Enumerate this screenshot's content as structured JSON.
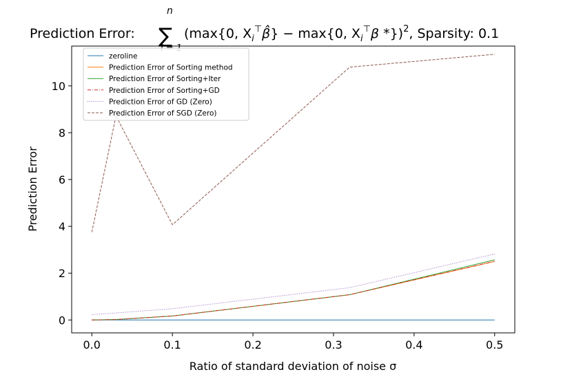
{
  "chart_data": {
    "type": "line",
    "title": "Prediction Error: ∑ᵢ₌₁ⁿ (max{0, Xᵢᵀβ̂} − max{0, Xᵢᵀβ*})², Sparsity: 0.1",
    "title_parts": {
      "prefix": "Prediction Error:",
      "sum_symbol": "∑",
      "sum_upper": "n",
      "sum_lower": "i = 1",
      "expression": "(max{0, X",
      "sub_i": "i",
      "sup_T": "⊤",
      "beta_hat": "β̂",
      "minus_part": "} − max{0, X",
      "beta_star": "β *",
      "tail": "})",
      "square": "2",
      "suffix": ", Sparsity: 0.1"
    },
    "xlabel": "Ratio of standard deviation of noise σ",
    "ylabel": "Prediction Error",
    "xlim": [
      -0.025,
      0.525
    ],
    "ylim": [
      -0.55,
      11.7
    ],
    "xticks": [
      0.0,
      0.1,
      0.2,
      0.3,
      0.4,
      0.5
    ],
    "xtick_labels": [
      "0.0",
      "0.1",
      "0.2",
      "0.3",
      "0.4",
      "0.5"
    ],
    "yticks": [
      0,
      2,
      4,
      6,
      8,
      10
    ],
    "ytick_labels": [
      "0",
      "2",
      "4",
      "6",
      "8",
      "10"
    ],
    "grid": false,
    "legend_position": "upper-left",
    "x": [
      0.0,
      0.03,
      0.1,
      0.32,
      0.5
    ],
    "series": [
      {
        "name": "zeroline",
        "values": [
          0,
          0,
          0,
          0,
          0
        ],
        "color": "#1f77b4",
        "style": "solid"
      },
      {
        "name": "Prediction Error of Sorting method",
        "values": [
          0.0,
          0.02,
          0.17,
          1.08,
          2.5
        ],
        "color": "#ff7f0e",
        "style": "solid"
      },
      {
        "name": "Prediction Error of Sorting+Iter",
        "values": [
          0.0,
          0.02,
          0.17,
          1.08,
          2.57
        ],
        "color": "#2ca02c",
        "style": "solid"
      },
      {
        "name": "Prediction Error of Sorting+GD",
        "values": [
          0.0,
          0.02,
          0.17,
          1.08,
          2.51
        ],
        "color": "#d62728",
        "style": "dashdot"
      },
      {
        "name": "Prediction Error of GD (Zero)",
        "values": [
          0.23,
          0.3,
          0.48,
          1.38,
          2.82
        ],
        "color": "#9467bd",
        "style": "dotted"
      },
      {
        "name": "Prediction Error of SGD (Zero)",
        "values": [
          3.75,
          8.72,
          4.07,
          10.8,
          11.35
        ],
        "color": "#8c564b",
        "style": "dashed"
      }
    ]
  }
}
